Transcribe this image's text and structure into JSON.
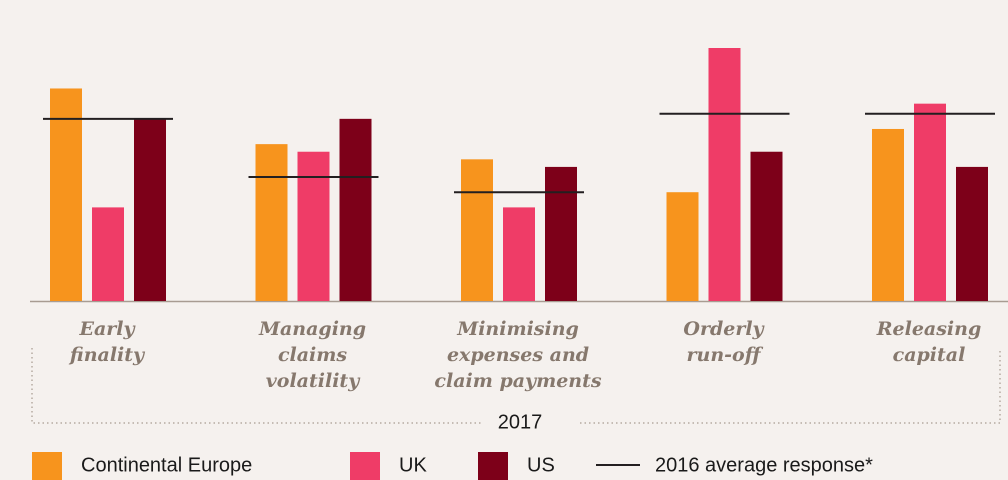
{
  "chart_data": {
    "type": "bar",
    "categories": [
      [
        "Early",
        "finality"
      ],
      [
        "Managing",
        "claims",
        "volatility"
      ],
      [
        "Minimising",
        "expenses and",
        "claim payments"
      ],
      [
        "Orderly",
        "run-off"
      ],
      [
        "Releasing",
        "capital"
      ]
    ],
    "group_label": "2017",
    "series": [
      {
        "name": "Continental Europe",
        "color": "#f7941d",
        "values": [
          84,
          62,
          56,
          43,
          68
        ]
      },
      {
        "name": "UK",
        "color": "#ef3c67",
        "values": [
          37,
          59,
          37,
          100,
          78
        ]
      },
      {
        "name": "US",
        "color": "#7d0019",
        "values": [
          72,
          72,
          53,
          59,
          53
        ]
      }
    ],
    "reference": {
      "name": "2016 average response*",
      "color": "#231f20",
      "values": [
        72,
        49,
        43,
        74,
        74
      ]
    },
    "ylim": [
      0,
      100
    ]
  }
}
